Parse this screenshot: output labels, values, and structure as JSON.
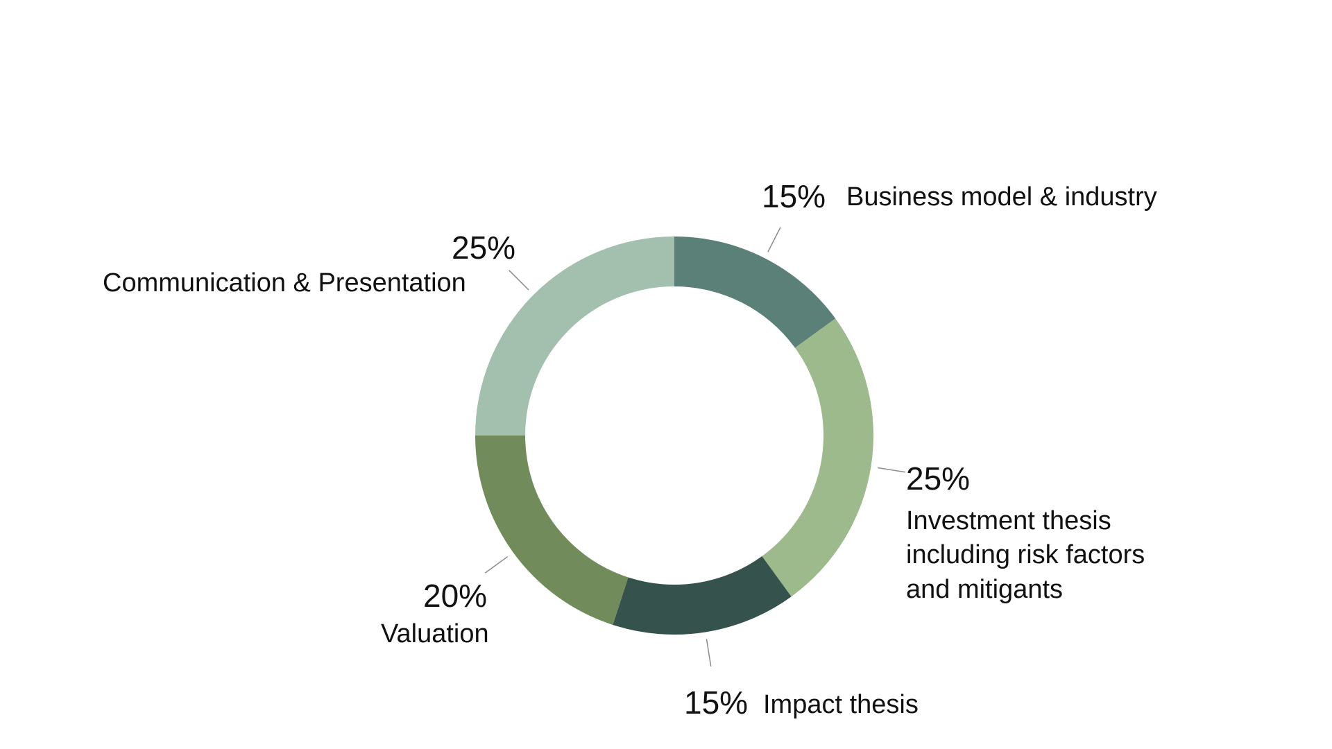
{
  "chart_data": {
    "type": "pie",
    "title": "",
    "slices": [
      {
        "label": "Business model & industry",
        "value": 15,
        "value_label": "15%",
        "color": "#5a8078"
      },
      {
        "label": "Investment thesis including risk factors and mitigants",
        "label_lines": [
          "Investment thesis",
          "including risk factors",
          "and mitigants"
        ],
        "value": 25,
        "value_label": "25%",
        "color": "#9dba8d"
      },
      {
        "label": "Impact thesis",
        "value": 15,
        "value_label": "15%",
        "color": "#36524d"
      },
      {
        "label": "Valuation",
        "value": 20,
        "value_label": "20%",
        "color": "#718b5b"
      },
      {
        "label": "Communication & Presentation",
        "value": 25,
        "value_label": "25%",
        "color": "#a3bfad"
      }
    ],
    "start_angle": "12 o'clock",
    "direction": "clockwise",
    "hole": "donut",
    "legend": "none"
  }
}
